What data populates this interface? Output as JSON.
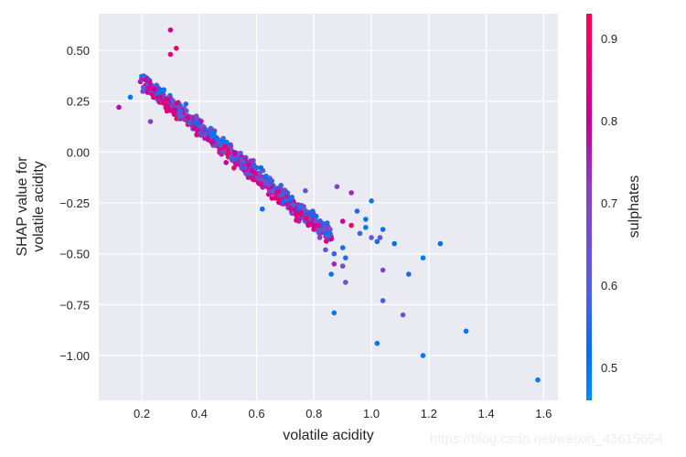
{
  "chart_data": {
    "type": "scatter",
    "title": "",
    "xlabel": "volatile acidity",
    "ylabel_lines": [
      "SHAP value for",
      "volatile acidity"
    ],
    "xlim": [
      0.05,
      1.65
    ],
    "ylim": [
      -1.22,
      0.68
    ],
    "xticks": [
      0.2,
      0.4,
      0.6,
      0.8,
      1.0,
      1.2,
      1.4,
      1.6
    ],
    "xtick_labels": [
      "0.2",
      "0.4",
      "0.6",
      "0.8",
      "1.0",
      "1.2",
      "1.4",
      "1.6"
    ],
    "yticks": [
      0.5,
      0.25,
      0.0,
      -0.25,
      -0.5,
      -0.75,
      -1.0
    ],
    "ytick_labels": [
      "0.50",
      "0.25",
      "0.00",
      "−0.25",
      "−0.50",
      "−0.75",
      "−1.00"
    ],
    "grid": true,
    "background": "#eaeaf2",
    "colorbar": {
      "label": "sulphates",
      "range": [
        0.46,
        0.93
      ],
      "ticks": [
        0.5,
        0.6,
        0.7,
        0.8,
        0.9
      ],
      "tick_labels": [
        "0.5",
        "0.6",
        "0.7",
        "0.8",
        "0.9"
      ],
      "colors": [
        "#008bfb",
        "#0070f0",
        "#5a5ddc",
        "#8a3fc0",
        "#c2009f",
        "#ff0052"
      ]
    },
    "trend": {
      "description": "Dense negative linear trend, SHAP ≈ 0.58 - 1.15*x for x in [0.12, 0.9]",
      "slope": -1.15,
      "intercept": 0.58,
      "n_cluster": 900
    },
    "points": [
      {
        "x": 0.12,
        "y": 0.22,
        "c": 0.78
      },
      {
        "x": 0.16,
        "y": 0.27,
        "c": 0.5
      },
      {
        "x": 0.3,
        "y": 0.6,
        "c": 0.8
      },
      {
        "x": 0.32,
        "y": 0.51,
        "c": 0.9
      },
      {
        "x": 0.3,
        "y": 0.48,
        "c": 0.85
      },
      {
        "x": 0.23,
        "y": 0.15,
        "c": 0.72
      },
      {
        "x": 0.62,
        "y": -0.28,
        "c": 0.52
      },
      {
        "x": 0.77,
        "y": -0.19,
        "c": 0.65
      },
      {
        "x": 0.88,
        "y": -0.17,
        "c": 0.68
      },
      {
        "x": 0.93,
        "y": -0.2,
        "c": 0.75
      },
      {
        "x": 1.0,
        "y": -0.24,
        "c": 0.5
      },
      {
        "x": 0.95,
        "y": -0.29,
        "c": 0.55
      },
      {
        "x": 0.9,
        "y": -0.34,
        "c": 0.82
      },
      {
        "x": 0.93,
        "y": -0.36,
        "c": 0.9
      },
      {
        "x": 0.98,
        "y": -0.33,
        "c": 0.5
      },
      {
        "x": 0.98,
        "y": -0.37,
        "c": 0.5
      },
      {
        "x": 0.96,
        "y": -0.4,
        "c": 0.58
      },
      {
        "x": 1.0,
        "y": -0.42,
        "c": 0.6
      },
      {
        "x": 1.02,
        "y": -0.44,
        "c": 0.52
      },
      {
        "x": 1.03,
        "y": -0.42,
        "c": 0.64
      },
      {
        "x": 1.08,
        "y": -0.45,
        "c": 0.52
      },
      {
        "x": 1.04,
        "y": -0.38,
        "c": 0.52
      },
      {
        "x": 0.82,
        "y": -0.42,
        "c": 0.72
      },
      {
        "x": 0.84,
        "y": -0.48,
        "c": 0.62
      },
      {
        "x": 0.87,
        "y": -0.5,
        "c": 0.55
      },
      {
        "x": 0.9,
        "y": -0.47,
        "c": 0.53
      },
      {
        "x": 0.91,
        "y": -0.52,
        "c": 0.55
      },
      {
        "x": 0.87,
        "y": -0.55,
        "c": 0.75
      },
      {
        "x": 0.9,
        "y": -0.56,
        "c": 0.66
      },
      {
        "x": 0.86,
        "y": -0.6,
        "c": 0.5
      },
      {
        "x": 0.91,
        "y": -0.64,
        "c": 0.64
      },
      {
        "x": 0.87,
        "y": -0.79,
        "c": 0.5
      },
      {
        "x": 1.02,
        "y": -0.94,
        "c": 0.5
      },
      {
        "x": 1.04,
        "y": -0.58,
        "c": 0.68
      },
      {
        "x": 1.04,
        "y": -0.73,
        "c": 0.58
      },
      {
        "x": 1.11,
        "y": -0.8,
        "c": 0.64
      },
      {
        "x": 1.13,
        "y": -0.6,
        "c": 0.54
      },
      {
        "x": 1.18,
        "y": -0.52,
        "c": 0.5
      },
      {
        "x": 1.24,
        "y": -0.45,
        "c": 0.52
      },
      {
        "x": 1.18,
        "y": -1.0,
        "c": 0.5
      },
      {
        "x": 1.33,
        "y": -0.88,
        "c": 0.5
      },
      {
        "x": 1.58,
        "y": -1.12,
        "c": 0.5
      }
    ]
  },
  "watermark": "https://blog.csdn.net/weixin_43615654"
}
